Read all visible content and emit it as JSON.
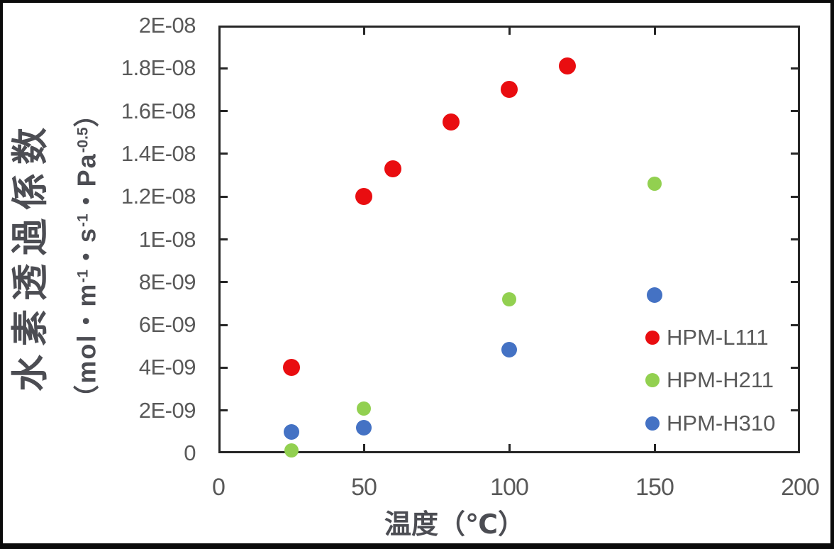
{
  "chart_data": {
    "type": "scatter",
    "title": "",
    "xlabel": "温度（℃）",
    "ylabel_main": "水素透過係数",
    "ylabel_unit_segments": [
      {
        "text": "（mol・m",
        "sup": "-1"
      },
      {
        "text": "・s",
        "sup": "-1"
      },
      {
        "text": "・Pa",
        "sup": "-0.5"
      },
      {
        "text": "）",
        "sup": ""
      }
    ],
    "xlim": [
      0,
      200
    ],
    "ylim": [
      0,
      2e-08
    ],
    "grid": false,
    "legend_position": "inside-right",
    "x_ticks": [
      {
        "value": 0,
        "label": "0"
      },
      {
        "value": 50,
        "label": "50"
      },
      {
        "value": 100,
        "label": "100"
      },
      {
        "value": 150,
        "label": "150"
      },
      {
        "value": 200,
        "label": "200"
      }
    ],
    "y_ticks": [
      {
        "value": 0,
        "label": "0"
      },
      {
        "value": 2e-09,
        "label": "2E-09"
      },
      {
        "value": 4e-09,
        "label": "4E-09"
      },
      {
        "value": 6e-09,
        "label": "6E-09"
      },
      {
        "value": 8e-09,
        "label": "8E-09"
      },
      {
        "value": 1e-08,
        "label": "1E-08"
      },
      {
        "value": 1.2e-08,
        "label": "1.2E-08"
      },
      {
        "value": 1.4e-08,
        "label": "1.4E-08"
      },
      {
        "value": 1.6e-08,
        "label": "1.6E-08"
      },
      {
        "value": 1.8e-08,
        "label": "1.8E-08"
      },
      {
        "value": 2e-08,
        "label": "2E-08"
      }
    ],
    "series": [
      {
        "name": "HPM-L111",
        "color": "#e90d10",
        "marker_size": 24,
        "points": [
          {
            "x": 25,
            "y": 4e-09
          },
          {
            "x": 50,
            "y": 1.2e-08
          },
          {
            "x": 60,
            "y": 1.33e-08
          },
          {
            "x": 80,
            "y": 1.55e-08
          },
          {
            "x": 100,
            "y": 1.7e-08
          },
          {
            "x": 120,
            "y": 1.81e-08
          }
        ]
      },
      {
        "name": "HPM-H211",
        "color": "#92d050",
        "marker_size": 20,
        "points": [
          {
            "x": 25,
            "y": 1.3e-10
          },
          {
            "x": 50,
            "y": 2.1e-09
          },
          {
            "x": 100,
            "y": 7.2e-09
          },
          {
            "x": 150,
            "y": 1.26e-08
          }
        ]
      },
      {
        "name": "HPM-H310",
        "color": "#4472c4",
        "marker_size": 22,
        "points": [
          {
            "x": 25,
            "y": 1e-09
          },
          {
            "x": 50,
            "y": 1.2e-09
          },
          {
            "x": 100,
            "y": 4.85e-09
          },
          {
            "x": 150,
            "y": 7.4e-09
          }
        ]
      }
    ],
    "frame_color": "#262626",
    "tick_label_color": "#595959",
    "title_color": "#4c4d53"
  }
}
